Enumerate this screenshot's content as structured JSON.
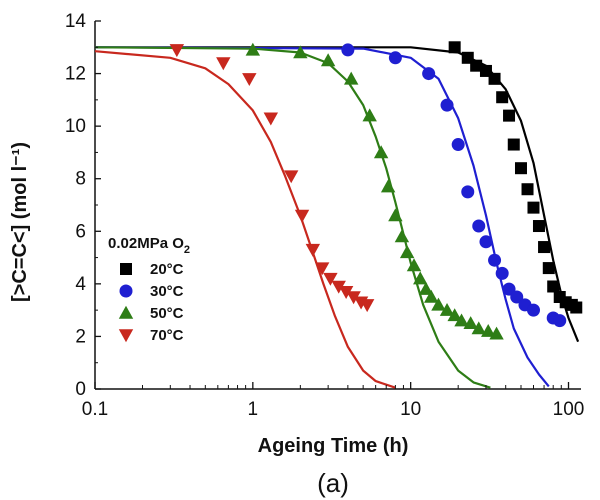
{
  "chart_data": {
    "type": "scatter",
    "xlabel": "Ageing Time (h)",
    "ylabel": "[>C=C<] (mol l⁻¹)",
    "xscale": "log",
    "xlim": [
      0.1,
      120
    ],
    "ylim": [
      0,
      14
    ],
    "x_ticks": [
      0.1,
      1,
      10,
      100
    ],
    "x_tick_labels": [
      "0.1",
      "1",
      "10",
      "100"
    ],
    "y_ticks": [
      0,
      2,
      4,
      6,
      8,
      10,
      12,
      14
    ],
    "y_tick_labels": [
      "0",
      "2",
      "4",
      "6",
      "8",
      "10",
      "12",
      "14"
    ],
    "legend_title": "0.02MPa O",
    "legend_title_sub": "2",
    "legend_position": "left",
    "grid": false,
    "caption": "(a)",
    "series": [
      {
        "name": "20°C",
        "color": "#000000",
        "marker": "square",
        "points": [
          [
            19,
            13.0
          ],
          [
            23,
            12.6
          ],
          [
            26,
            12.3
          ],
          [
            30,
            12.1
          ],
          [
            34,
            11.8
          ],
          [
            38,
            11.1
          ],
          [
            42,
            10.4
          ],
          [
            45,
            9.3
          ],
          [
            50,
            8.4
          ],
          [
            55,
            7.6
          ],
          [
            60,
            6.9
          ],
          [
            65,
            6.2
          ],
          [
            70,
            5.4
          ],
          [
            75,
            4.6
          ],
          [
            80,
            3.9
          ],
          [
            88,
            3.5
          ],
          [
            96,
            3.3
          ],
          [
            105,
            3.2
          ],
          [
            112,
            3.1
          ]
        ]
      },
      {
        "name": "30°C",
        "color": "#1f1fd1",
        "marker": "circle",
        "points": [
          [
            4,
            12.9
          ],
          [
            8,
            12.6
          ],
          [
            13,
            12.0
          ],
          [
            17,
            10.8
          ],
          [
            20,
            9.3
          ],
          [
            23,
            7.5
          ],
          [
            27,
            6.2
          ],
          [
            30,
            5.6
          ],
          [
            34,
            4.9
          ],
          [
            38,
            4.4
          ],
          [
            42,
            3.8
          ],
          [
            47,
            3.5
          ],
          [
            53,
            3.2
          ],
          [
            60,
            3.0
          ],
          [
            80,
            2.7
          ],
          [
            88,
            2.6
          ]
        ]
      },
      {
        "name": "50°C",
        "color": "#2e7d16",
        "marker": "triangle-up",
        "points": [
          [
            1.0,
            12.9
          ],
          [
            2.0,
            12.8
          ],
          [
            3.0,
            12.5
          ],
          [
            4.2,
            11.8
          ],
          [
            5.5,
            10.4
          ],
          [
            6.5,
            9.0
          ],
          [
            7.2,
            7.7
          ],
          [
            8.0,
            6.6
          ],
          [
            8.8,
            5.8
          ],
          [
            9.5,
            5.2
          ],
          [
            10.5,
            4.7
          ],
          [
            11.5,
            4.2
          ],
          [
            12.5,
            3.8
          ],
          [
            13.5,
            3.5
          ],
          [
            15,
            3.2
          ],
          [
            17,
            3.0
          ],
          [
            19,
            2.8
          ],
          [
            21,
            2.6
          ],
          [
            24,
            2.5
          ],
          [
            27,
            2.3
          ],
          [
            31,
            2.2
          ],
          [
            35,
            2.1
          ]
        ]
      },
      {
        "name": "70°C",
        "color": "#c8281e",
        "marker": "triangle-down",
        "points": [
          [
            0.33,
            12.9
          ],
          [
            0.65,
            12.4
          ],
          [
            0.95,
            11.8
          ],
          [
            1.3,
            10.3
          ],
          [
            1.75,
            8.1
          ],
          [
            2.05,
            6.6
          ],
          [
            2.4,
            5.3
          ],
          [
            2.75,
            4.6
          ],
          [
            3.1,
            4.2
          ],
          [
            3.5,
            3.9
          ],
          [
            3.9,
            3.7
          ],
          [
            4.35,
            3.5
          ],
          [
            4.85,
            3.3
          ],
          [
            5.3,
            3.2
          ]
        ]
      }
    ],
    "fits": [
      {
        "name": "20°C fit",
        "color": "#000000",
        "points": [
          [
            0.1,
            13.0
          ],
          [
            10,
            13.0
          ],
          [
            20,
            12.8
          ],
          [
            30,
            12.3
          ],
          [
            40,
            11.4
          ],
          [
            50,
            10.2
          ],
          [
            60,
            8.6
          ],
          [
            70,
            6.6
          ],
          [
            80,
            4.9
          ],
          [
            90,
            3.6
          ],
          [
            100,
            2.7
          ],
          [
            115,
            1.8
          ]
        ]
      },
      {
        "name": "30°C fit",
        "color": "#1f1fd1",
        "points": [
          [
            0.1,
            13.0
          ],
          [
            5,
            12.95
          ],
          [
            10,
            12.6
          ],
          [
            15,
            11.8
          ],
          [
            20,
            10.3
          ],
          [
            25,
            8.5
          ],
          [
            30,
            6.6
          ],
          [
            35,
            4.8
          ],
          [
            40,
            3.4
          ],
          [
            45,
            2.3
          ],
          [
            55,
            1.2
          ],
          [
            65,
            0.55
          ],
          [
            75,
            0.1
          ]
        ]
      },
      {
        "name": "50°C fit",
        "color": "#2e7d16",
        "points": [
          [
            0.1,
            13.0
          ],
          [
            1,
            12.95
          ],
          [
            2,
            12.8
          ],
          [
            3,
            12.4
          ],
          [
            4,
            11.7
          ],
          [
            5,
            10.8
          ],
          [
            6,
            9.6
          ],
          [
            7,
            8.4
          ],
          [
            8,
            7.1
          ],
          [
            9,
            5.9
          ],
          [
            10,
            4.8
          ],
          [
            12,
            3.2
          ],
          [
            15,
            1.8
          ],
          [
            20,
            0.7
          ],
          [
            25,
            0.25
          ],
          [
            32,
            0.05
          ]
        ]
      },
      {
        "name": "70°C fit",
        "color": "#c8281e",
        "points": [
          [
            0.1,
            12.85
          ],
          [
            0.3,
            12.6
          ],
          [
            0.5,
            12.2
          ],
          [
            0.7,
            11.6
          ],
          [
            1.0,
            10.6
          ],
          [
            1.3,
            9.4
          ],
          [
            1.6,
            8.1
          ],
          [
            2.0,
            6.6
          ],
          [
            2.4,
            5.2
          ],
          [
            2.8,
            4.0
          ],
          [
            3.3,
            2.8
          ],
          [
            4.0,
            1.6
          ],
          [
            5.0,
            0.7
          ],
          [
            6.0,
            0.3
          ],
          [
            8.0,
            0.05
          ]
        ]
      }
    ]
  }
}
